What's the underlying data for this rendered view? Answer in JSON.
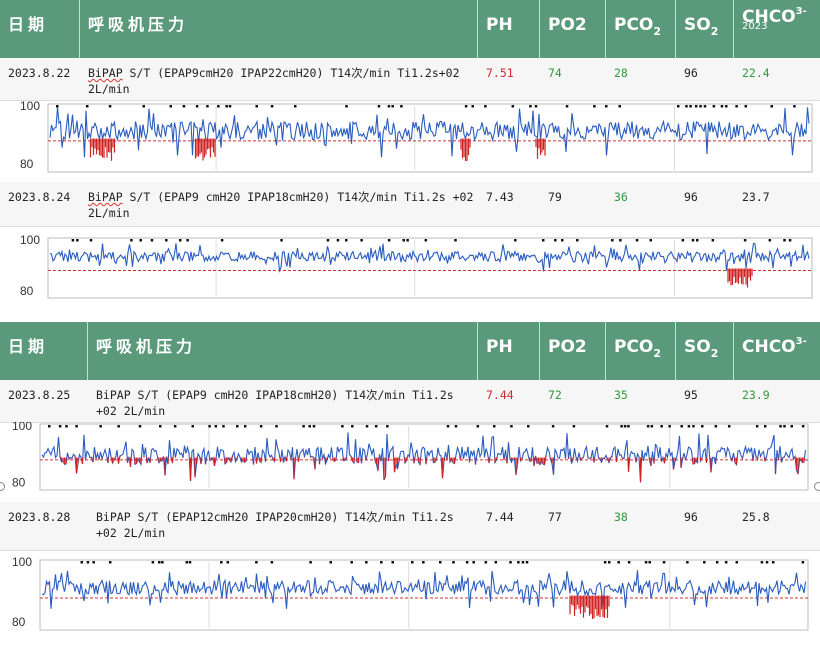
{
  "panel1": {
    "headers": {
      "date": "日期",
      "pressure": "呼吸机压力",
      "ph": "PH",
      "po2": "PO2",
      "pco2_main": "PCO",
      "pco2_sub": "2",
      "so2_main": "SO",
      "so2_sub": "2",
      "hco3_main": "CHCO",
      "hco3_sup": "3-",
      "hco3_year": "2023"
    },
    "rows": [
      {
        "date": "2023.8.22",
        "pressure_a": "BiPAP",
        "pressure_b": " S/T (EPAP9cmH20 IPAP22cmH20) T14次/min Ti1.2s+02 2L/min",
        "ph": "7.51",
        "po2": "74",
        "pco2": "28",
        "so2": "96",
        "hco3": "22.4"
      },
      {
        "date": "2023.8.24",
        "pressure_a": "BiPAP",
        "pressure_b": " S/T (EPAP9 cmH20 IPAP18cmH20) T14次/min Ti1.2s +02 2L/min",
        "ph": "7.43",
        "po2": "79",
        "pco2": "36",
        "so2": "96",
        "hco3": "23.7"
      }
    ]
  },
  "panel2": {
    "headers": {
      "date": "日期",
      "pressure": "呼吸机压力",
      "ph": "PH",
      "po2": "PO2",
      "pco2_main": "PCO",
      "pco2_sub": "2",
      "so2_main": "SO",
      "so2_sub": "2",
      "hco3_main": "CHCO",
      "hco3_sup": "3-"
    },
    "rows": [
      {
        "date": "2023.8.25",
        "pressure_a": "BiPAP",
        "pressure_b": " S/T (EPAP9 cmH20 IPAP18cmH20) T14次/min Ti1.2s +02 2L/min",
        "ph": "7.44",
        "po2": "72",
        "pco2": "35",
        "so2": "95",
        "hco3": "23.9"
      },
      {
        "date": "2023.8.28",
        "pressure_a": "BiPAP",
        "pressure_b": " S/T (EPAP12cmH20 IPAP20cmH20) T14次/min Ti1.2s +02 2L/min",
        "ph": "7.44",
        "po2": "77",
        "pco2": "38",
        "so2": "96",
        "hco3": "25.8"
      }
    ]
  },
  "colors": {
    "header_bg": "#5a9a7a",
    "trace_blue": "#2a5cc0",
    "trace_red": "#d02222",
    "threshold": "#cc3333",
    "value_red": "#d02a2a",
    "value_green": "#2e9a3c"
  },
  "chart_data": [
    {
      "type": "line",
      "ylim": [
        78,
        100
      ],
      "yticks": [
        100,
        80
      ],
      "threshold": 88,
      "series": [
        {
          "baseline": 91.5,
          "noise": 4
        }
      ]
    },
    {
      "type": "line",
      "ylim": [
        78,
        100
      ],
      "yticks": [
        100,
        80
      ],
      "threshold": 88,
      "series": [
        {
          "baseline": 93.5,
          "noise": 2.5
        }
      ]
    },
    {
      "type": "line",
      "ylim": [
        78,
        100
      ],
      "yticks": [
        100,
        80
      ],
      "threshold": 88,
      "series": [
        {
          "baseline": 89.5,
          "noise": 4
        }
      ]
    },
    {
      "type": "line",
      "ylim": [
        78,
        100
      ],
      "yticks": [
        100,
        80
      ],
      "threshold": 88,
      "series": [
        {
          "baseline": 91.5,
          "noise": 3
        }
      ]
    }
  ]
}
